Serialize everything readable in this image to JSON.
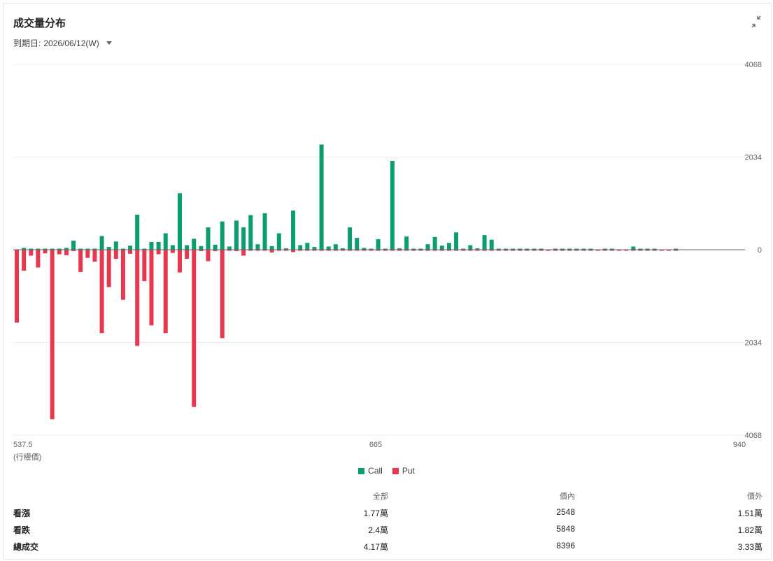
{
  "header": {
    "title": "成交量分布",
    "expiry_label": "到期日:",
    "expiry_value": "2026/06/12(W)"
  },
  "colors": {
    "call": "#0a9d6e",
    "put": "#e8384f"
  },
  "legend": {
    "call": "Call",
    "put": "Put"
  },
  "chart_data": {
    "type": "bar",
    "xlabel": "(行權價)",
    "x_ticks": [
      "537.5",
      "665",
      "940"
    ],
    "y_ticks_top": [
      "4068",
      "2034",
      "0"
    ],
    "y_ticks_bottom": [
      "2034",
      "4068"
    ],
    "ylim": [
      -4068,
      4068
    ],
    "grid": true,
    "series": [
      {
        "name": "Call",
        "values": [
          0,
          40,
          5,
          5,
          5,
          5,
          10,
          40,
          200,
          20,
          20,
          20,
          300,
          60,
          180,
          20,
          90,
          770,
          20,
          170,
          170,
          360,
          100,
          1240,
          100,
          240,
          80,
          490,
          110,
          620,
          70,
          640,
          490,
          760,
          120,
          800,
          80,
          360,
          30,
          860,
          100,
          150,
          60,
          2310,
          70,
          120,
          30,
          490,
          260,
          40,
          20,
          230,
          20,
          1950,
          30,
          290,
          20,
          20,
          120,
          280,
          90,
          150,
          380,
          20,
          100,
          30,
          320,
          220,
          20,
          20,
          20,
          20,
          20,
          20,
          20,
          0,
          20,
          20,
          20,
          20,
          20,
          20,
          0,
          20,
          20,
          0,
          0,
          70,
          20,
          20,
          20,
          0,
          0,
          20
        ]
      },
      {
        "name": "Put",
        "values": [
          -1600,
          -460,
          -130,
          -390,
          -80,
          -3720,
          -100,
          -120,
          -30,
          -490,
          -180,
          -260,
          -1830,
          -820,
          -200,
          -1100,
          -90,
          -2110,
          -690,
          -1660,
          -100,
          -1830,
          -70,
          -500,
          -200,
          -3450,
          -30,
          -250,
          -30,
          -1940,
          -20,
          -30,
          -130,
          -20,
          -20,
          -20,
          -60,
          -20,
          -20,
          -50,
          -20,
          -20,
          -20,
          -20,
          -20,
          -20,
          -20,
          -20,
          -20,
          -20,
          -20,
          -20,
          -20,
          -20,
          -20,
          -20,
          -20,
          -20,
          -20,
          -20,
          -20,
          -20,
          -20,
          -20,
          -20,
          -20,
          -20,
          -20,
          -20,
          -20,
          -20,
          -20,
          -20,
          -20,
          -20,
          -20,
          -20,
          -20,
          -20,
          -20,
          -20,
          -20,
          -20,
          -20,
          -20,
          -20,
          -20,
          -20,
          -20,
          -20,
          -20,
          -20,
          -20,
          -20
        ]
      }
    ]
  },
  "stats": {
    "headers": [
      "全部",
      "價內",
      "價外"
    ],
    "rows": [
      {
        "label": "看漲",
        "all": "1.77萬",
        "itm": "2548",
        "otm": "1.51萬"
      },
      {
        "label": "看跌",
        "all": "2.4萬",
        "itm": "5848",
        "otm": "1.82萬"
      },
      {
        "label": "總成交",
        "all": "4.17萬",
        "itm": "8396",
        "otm": "3.33萬"
      }
    ]
  }
}
